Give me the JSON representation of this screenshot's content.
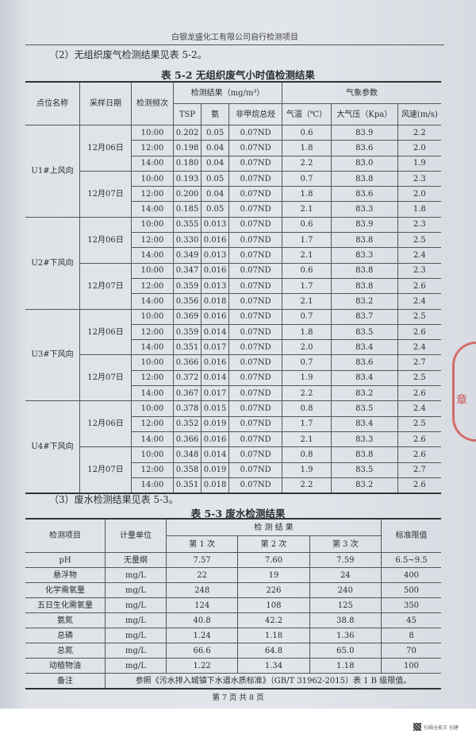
{
  "header": "白银龙盛化工有限公司自行检测项目",
  "section2": "（2）无组织废气检测结果见表 5-2。",
  "table1": {
    "caption": "表 5-2   无组织废气小时值检测结果",
    "headers": {
      "site": "点位名称",
      "date": "采样日期",
      "freq": "检测频次",
      "results": "检测结果（mg/m³）",
      "tsp": "TSP",
      "nh3": "氨",
      "nmhc": "非甲烷总烃",
      "weather": "气象参数",
      "temp": "气温（℃）",
      "pressure": "大气压（Kpa）",
      "wind": "风速(m/s)"
    },
    "sites": [
      {
        "name": "U1#上风向",
        "days": [
          {
            "date": "12月06日",
            "rows": [
              [
                "10:00",
                "0.202",
                "0.05",
                "0.07ND",
                "0.6",
                "83.9",
                "2.2"
              ],
              [
                "12:00",
                "0.198",
                "0.04",
                "0.07ND",
                "1.8",
                "83.6",
                "2.0"
              ],
              [
                "14:00",
                "0.180",
                "0.04",
                "0.07ND",
                "2.2",
                "83.0",
                "1.9"
              ]
            ]
          },
          {
            "date": "12月07日",
            "rows": [
              [
                "10:00",
                "0.193",
                "0.05",
                "0.07ND",
                "0.7",
                "83.8",
                "2.3"
              ],
              [
                "12:00",
                "0.200",
                "0.04",
                "0.07ND",
                "1.8",
                "83.6",
                "2.0"
              ],
              [
                "14:00",
                "0.185",
                "0.05",
                "0.07ND",
                "2.1",
                "83.3",
                "1.8"
              ]
            ]
          }
        ]
      },
      {
        "name": "U2#下风向",
        "days": [
          {
            "date": "12月06日",
            "rows": [
              [
                "10:00",
                "0.355",
                "0.013",
                "0.07ND",
                "0.6",
                "83.9",
                "2.3"
              ],
              [
                "12:00",
                "0.330",
                "0.016",
                "0.07ND",
                "1.7",
                "83.8",
                "2.5"
              ],
              [
                "14:00",
                "0.349",
                "0.013",
                "0.07ND",
                "2.1",
                "83.3",
                "2.4"
              ]
            ]
          },
          {
            "date": "12月07日",
            "rows": [
              [
                "10:00",
                "0.347",
                "0.016",
                "0.07ND",
                "0.6",
                "83.8",
                "2.3"
              ],
              [
                "12:00",
                "0.359",
                "0.013",
                "0.07ND",
                "1.7",
                "83.8",
                "2.6"
              ],
              [
                "14:00",
                "0.356",
                "0.018",
                "0.07ND",
                "2.1",
                "83.2",
                "2.4"
              ]
            ]
          }
        ]
      },
      {
        "name": "U3#下风向",
        "days": [
          {
            "date": "12月06日",
            "rows": [
              [
                "10:00",
                "0.369",
                "0.016",
                "0.07ND",
                "0.7",
                "83.7",
                "2.5"
              ],
              [
                "12:00",
                "0.359",
                "0.014",
                "0.07ND",
                "1.8",
                "83.5",
                "2.6"
              ],
              [
                "14:00",
                "0.351",
                "0.017",
                "0.07ND",
                "2.0",
                "83.4",
                "2.4"
              ]
            ]
          },
          {
            "date": "12月07日",
            "rows": [
              [
                "10:00",
                "0.366",
                "0.016",
                "0.07ND",
                "0.7",
                "83.6",
                "2.7"
              ],
              [
                "12:00",
                "0.372",
                "0.014",
                "0.07ND",
                "1.9",
                "83.4",
                "2.5"
              ],
              [
                "14:00",
                "0.367",
                "0.017",
                "0.07ND",
                "2.2",
                "83.2",
                "2.6"
              ]
            ]
          }
        ]
      },
      {
        "name": "U4#下风向",
        "days": [
          {
            "date": "12月06日",
            "rows": [
              [
                "10:00",
                "0.378",
                "0.015",
                "0.07ND",
                "0.8",
                "83.5",
                "2.4"
              ],
              [
                "12:00",
                "0.352",
                "0.019",
                "0.07ND",
                "1.7",
                "83.4",
                "2.5"
              ],
              [
                "14:00",
                "0.366",
                "0.016",
                "0.07ND",
                "2.1",
                "83.3",
                "2.6"
              ]
            ]
          },
          {
            "date": "12月07日",
            "rows": [
              [
                "10:00",
                "0.348",
                "0.014",
                "0.07ND",
                "0.8",
                "83.8",
                "2.6"
              ],
              [
                "12:00",
                "0.358",
                "0.019",
                "0.07ND",
                "1.9",
                "83.5",
                "2.7"
              ],
              [
                "14:00",
                "0.351",
                "0.018",
                "0.07ND",
                "2.2",
                "83.2",
                "2.6"
              ]
            ]
          }
        ]
      }
    ]
  },
  "section3": "（3）废水检测结果见表 5-3。",
  "table2": {
    "caption": "表 5-3      废水检测结果",
    "headers": {
      "item": "检测项目",
      "unit": "计量单位",
      "results": "检 测 结 果",
      "r1": "第 1 次",
      "r2": "第 2 次",
      "r3": "第 3 次",
      "limit": "标准限值"
    },
    "rows": [
      [
        "pH",
        "无量纲",
        "7.57",
        "7.60",
        "7.59",
        "6.5~9.5"
      ],
      [
        "悬浮物",
        "mg/L",
        "22",
        "19",
        "24",
        "400"
      ],
      [
        "化学需氧量",
        "mg/L",
        "248",
        "226",
        "240",
        "500"
      ],
      [
        "五日生化需氧量",
        "mg/L",
        "124",
        "108",
        "125",
        "350"
      ],
      [
        "氨氮",
        "mg/L",
        "40.8",
        "42.2",
        "38.8",
        "45"
      ],
      [
        "总磷",
        "mg/L",
        "1.24",
        "1.18",
        "1.36",
        "8"
      ],
      [
        "总氮",
        "mg/L",
        "66.6",
        "64.8",
        "65.0",
        "70"
      ],
      [
        "动植物油",
        "mg/L",
        "1.22",
        "1.34",
        "1.18",
        "100"
      ]
    ],
    "note_label": "备注",
    "note": "参照《污水排入城镇下水道水质标准》（GB/T 31962-2015）表 1 B 级限值。"
  },
  "footer": "第 7 页 共 8 页",
  "stamp_text": "章",
  "watermark": "扫描全能王 创建"
}
